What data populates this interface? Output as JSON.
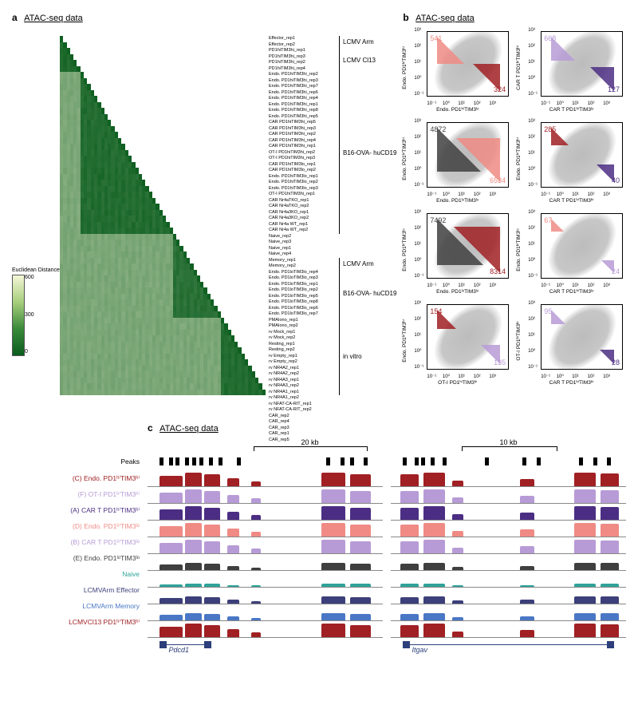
{
  "panelA": {
    "title": "ATAC-seq data",
    "letter": "a",
    "colorbar": {
      "title": "Euclidean Distance",
      "min": 0,
      "mid": 300,
      "max": 600
    },
    "groups": [
      {
        "label": "LCMV Arm",
        "startRow": 0,
        "endRow": 1
      },
      {
        "label": "LCMV Cl13",
        "startRow": 2,
        "endRow": 5
      },
      {
        "label": "B16-OVA-\nhuCD19",
        "startRow": 6,
        "endRow": 32
      },
      {
        "label": "LCMV Arm",
        "startRow": 37,
        "endRow": 38
      },
      {
        "label": "B16-OVA-\nhuCD19",
        "startRow": 39,
        "endRow": 46
      },
      {
        "label": "in vitro",
        "startRow": 47,
        "endRow": 59
      }
    ],
    "rows": [
      "Effector_rep1",
      "Effector_rep2",
      "PD1hiTIM3hi_rep1",
      "PD1hiTIM3hi_rep3",
      "PD1hiTIM3hi_rep2",
      "PD1hiTIM3hi_rep4",
      "Endo. PD1hiTIM3hi_rep2",
      "Endo. PD1hiTIM3hi_rep3",
      "Endo. PD1hiTIM3hi_rep7",
      "Endo. PD1hiTIM3hi_rep6",
      "Endo. PD1hiTIM3hi_rep4",
      "Endo. PD1hiTIM3hi_rep1",
      "Endo. PD1hiTIM3hi_rep8",
      "Endo. PD1hiTIM3hi_rep5",
      "CAR PD1hiTIM3hi_rep5",
      "CAR PD1hiTIM3hi_rep3",
      "CAR PD1hiTIM3hi_rep2",
      "CAR PD1hiTIM3hi_rep4",
      "CAR PD1hiTIM3hi_rep1",
      "OT-I PD1hiTIM3hi_rep2",
      "OT-I PD1hiTIM3hi_rep3",
      "CAR PD1hiTIM3lo_rep1",
      "CAR PD1hiTIM3lo_rep2",
      "Endo. PD1hiTIM3lo_rep1",
      "Endo. PD1hiTIM3lo_rep2",
      "Endo. PD1hiTIM3lo_rep3",
      "OT-I PD1hiTIM3hi_rep1",
      "CAR Nr4aTKO_rep1",
      "CAR Nr4aTKO_rep2",
      "CAR Nr4a3KO_rep1",
      "CAR Nr4a3KO_rep2",
      "CAR Nr4a WT_rep1",
      "CAR Nr4a WT_rep2",
      "Naive_rep2",
      "Naive_rep3",
      "Naive_rep1",
      "Naive_rep4",
      "Memory_rep1",
      "Memory_rep2",
      "Endo. PD1loTIM3lo_rep4",
      "Endo. PD1loTIM3lo_rep3",
      "Endo. PD1loTIM3lo_rep1",
      "Endo. PD1loTIM3lo_rep2",
      "Endo. PD1loTIM3lo_rep5",
      "Endo. PD1loTIM3lo_rep8",
      "Endo. PD1loTIM3lo_rep6",
      "Endo. PD1loTIM3lo_rep7",
      "PMAIono_rep1",
      "PMAIono_rep2",
      "rv Mock_rep1",
      "rv Mock_rep2",
      "Resting_rep1",
      "Resting_rep2",
      "rv Empty_rep1",
      "rv Empty_rep2",
      "rv NR4A2_rep1",
      "rv NR4A2_rep2",
      "rv NR4A3_rep1",
      "rv NR4A3_rep2",
      "rv NR4A1_rep1",
      "rv NR4A1_rep2",
      "rv NFAT-CA-RIT_rep1",
      "rv NFAT-CA-RIT_rep2",
      "CAR_rep2",
      "CAR_rep4",
      "CAR_rep3",
      "CAR_rep1",
      "CAR_rep5"
    ],
    "blocks": [
      {
        "r0": 0,
        "r1": 5,
        "c0": 0,
        "c1": 5,
        "v": 0.1
      },
      {
        "r0": 0,
        "r1": 5,
        "c0": 6,
        "c1": 32,
        "v": 0.18
      },
      {
        "r0": 6,
        "r1": 32,
        "c0": 6,
        "c1": 32,
        "v": 0.12
      },
      {
        "r0": 0,
        "r1": 32,
        "c0": 33,
        "c1": 46,
        "v": 0.62
      },
      {
        "r0": 33,
        "r1": 46,
        "c0": 33,
        "c1": 46,
        "v": 0.15
      },
      {
        "r0": 0,
        "r1": 46,
        "c0": 47,
        "c1": 59,
        "v": 0.72
      },
      {
        "r0": 33,
        "r1": 46,
        "c0": 47,
        "c1": 59,
        "v": 0.58
      },
      {
        "r0": 47,
        "r1": 59,
        "c0": 47,
        "c1": 59,
        "v": 0.12
      }
    ]
  },
  "panelB": {
    "title": "ATAC-seq data",
    "letter": "b",
    "ticks": [
      "10⁻¹",
      "10⁰",
      "10¹",
      "10²",
      "10³"
    ],
    "scatters": [
      {
        "y": "Endo. PD1ʰⁱTIM3ʰⁱ",
        "x": "Endo. PD1ʰⁱTIM3ˡᵒ",
        "nUL": "541",
        "nBR": "324",
        "cUL": "#ef8b84",
        "cBR": "#a02023",
        "wedgeSize": 34
      },
      {
        "y": "CAR T PD1ʰⁱTIM3ʰⁱ",
        "x": "CAR T PD1ʰⁱTIM3ˡᵒ",
        "nUL": "668",
        "nBR": "127",
        "cUL": "#b79bd6",
        "cBR": "#4b2e83",
        "wedgeSize": 30
      },
      {
        "y": "Endo. PD1ʰⁱTIM3ʰⁱ",
        "x": "Endo. PD1ˡᵒTIM3ˡᵒ",
        "nUL": "4872",
        "nBR": "6534",
        "cUL": "#3f3f3f",
        "cBR": "#ef8b84",
        "wedgeSize": 55
      },
      {
        "y": "Endo. PD1ʰⁱTIM3ʰⁱ",
        "x": "CAR T PD1ʰⁱTIM3ʰⁱ",
        "nUL": "285",
        "nBR": "40",
        "cUL": "#a02023",
        "cBR": "#4b2e83",
        "wedgeSize": 22
      },
      {
        "y": "Endo. PD1ʰⁱTIM3ˡᵒ",
        "x": "Endo. PD1ˡᵒTIM3ˡᵒ",
        "nUL": "7492",
        "nBR": "8314",
        "cUL": "#3f3f3f",
        "cBR": "#a02023",
        "wedgeSize": 58
      },
      {
        "y": "Endo. PD1ʰⁱTIM3ˡᵒ",
        "x": "CAR T PD1ʰⁱTIM3ˡᵒ",
        "nUL": "67",
        "nBR": "24",
        "cUL": "#ef8b84",
        "cBR": "#b79bd6",
        "wedgeSize": 16
      },
      {
        "y": "Endo. PD1ʰⁱTIM3ʰⁱ",
        "x": "OT-I PD1ʰⁱTIM3ʰⁱ",
        "nUL": "154",
        "nBR": "135",
        "cUL": "#a02023",
        "cBR": "#b79bd6",
        "wedgeSize": 24
      },
      {
        "y": "OT-I PD1ʰⁱTIM3ʰⁱ",
        "x": "CAR T PD1ʰⁱTIM3ʰⁱ",
        "nUL": "95",
        "nBR": "28",
        "cUL": "#b79bd6",
        "cBR": "#4b2e83",
        "wedgeSize": 18
      }
    ]
  },
  "panelC": {
    "title": "ATAC-seq data",
    "letter": "c",
    "peaksLabel": "Peaks",
    "labels": [
      {
        "text": "(C) Endo. PD1ʰⁱTIM3ʰⁱ",
        "color": "#a02023"
      },
      {
        "text": "(F) OT-I PD1ʰⁱTIM3ʰⁱ",
        "color": "#b79bd6"
      },
      {
        "text": "(A) CAR T PD1ʰⁱTIM3ʰⁱ",
        "color": "#4b2e83"
      },
      {
        "text": "(D) Endo. PD1ʰⁱTIM3ˡᵒ",
        "color": "#ef8b84"
      },
      {
        "text": "(B) CAR T PD1ʰⁱTIM3ˡᵒ",
        "color": "#b79bd6"
      },
      {
        "text": "(E) Endo. PD1ˡᵒTIM3ˡᵒ",
        "color": "#3f3f3f"
      },
      {
        "text": "Naive",
        "color": "#2fa29a"
      },
      {
        "text": "LCMVArm Effector",
        "color": "#3c3f7a"
      },
      {
        "text": "LCMVArm Memory",
        "color": "#4a77c5"
      },
      {
        "text": "LCMVCl13 PD1ʰⁱTIM3ʰⁱ",
        "color": "#a02023"
      }
    ],
    "cols": [
      {
        "scale": "20 kb",
        "scaleLeft": 45,
        "scaleWidth": 48,
        "gene": "Pdcd1",
        "geneLeft": 5,
        "geneWidth": 22,
        "peakTicks": [
          5,
          9,
          12,
          16,
          19,
          22,
          26,
          30,
          38,
          76,
          82,
          86,
          92
        ],
        "peaks": [
          {
            "x": 5,
            "w": 10,
            "h": 0.7
          },
          {
            "x": 16,
            "w": 7,
            "h": 0.95
          },
          {
            "x": 24,
            "w": 7,
            "h": 0.85
          },
          {
            "x": 34,
            "w": 5,
            "h": 0.55
          },
          {
            "x": 44,
            "w": 4,
            "h": 0.35
          },
          {
            "x": 74,
            "w": 10,
            "h": 0.95
          },
          {
            "x": 86,
            "w": 9,
            "h": 0.85
          }
        ],
        "lowRows": [
          6
        ],
        "mediumRows": [
          5,
          7,
          8
        ]
      },
      {
        "scale": "10 kb",
        "scaleLeft": 30,
        "scaleWidth": 40,
        "gene": "Itgav",
        "geneLeft": 5,
        "geneWidth": 90,
        "peakTicks": [
          5,
          10,
          13,
          17,
          22,
          40,
          56,
          62,
          80,
          86,
          92
        ],
        "peaks": [
          {
            "x": 4,
            "w": 8,
            "h": 0.85
          },
          {
            "x": 14,
            "w": 9,
            "h": 0.95
          },
          {
            "x": 26,
            "w": 5,
            "h": 0.4
          },
          {
            "x": 55,
            "w": 6,
            "h": 0.5
          },
          {
            "x": 78,
            "w": 9,
            "h": 0.92
          },
          {
            "x": 89,
            "w": 8,
            "h": 0.88
          }
        ],
        "lowRows": [
          6
        ],
        "mediumRows": [
          5,
          7,
          8
        ]
      }
    ]
  }
}
